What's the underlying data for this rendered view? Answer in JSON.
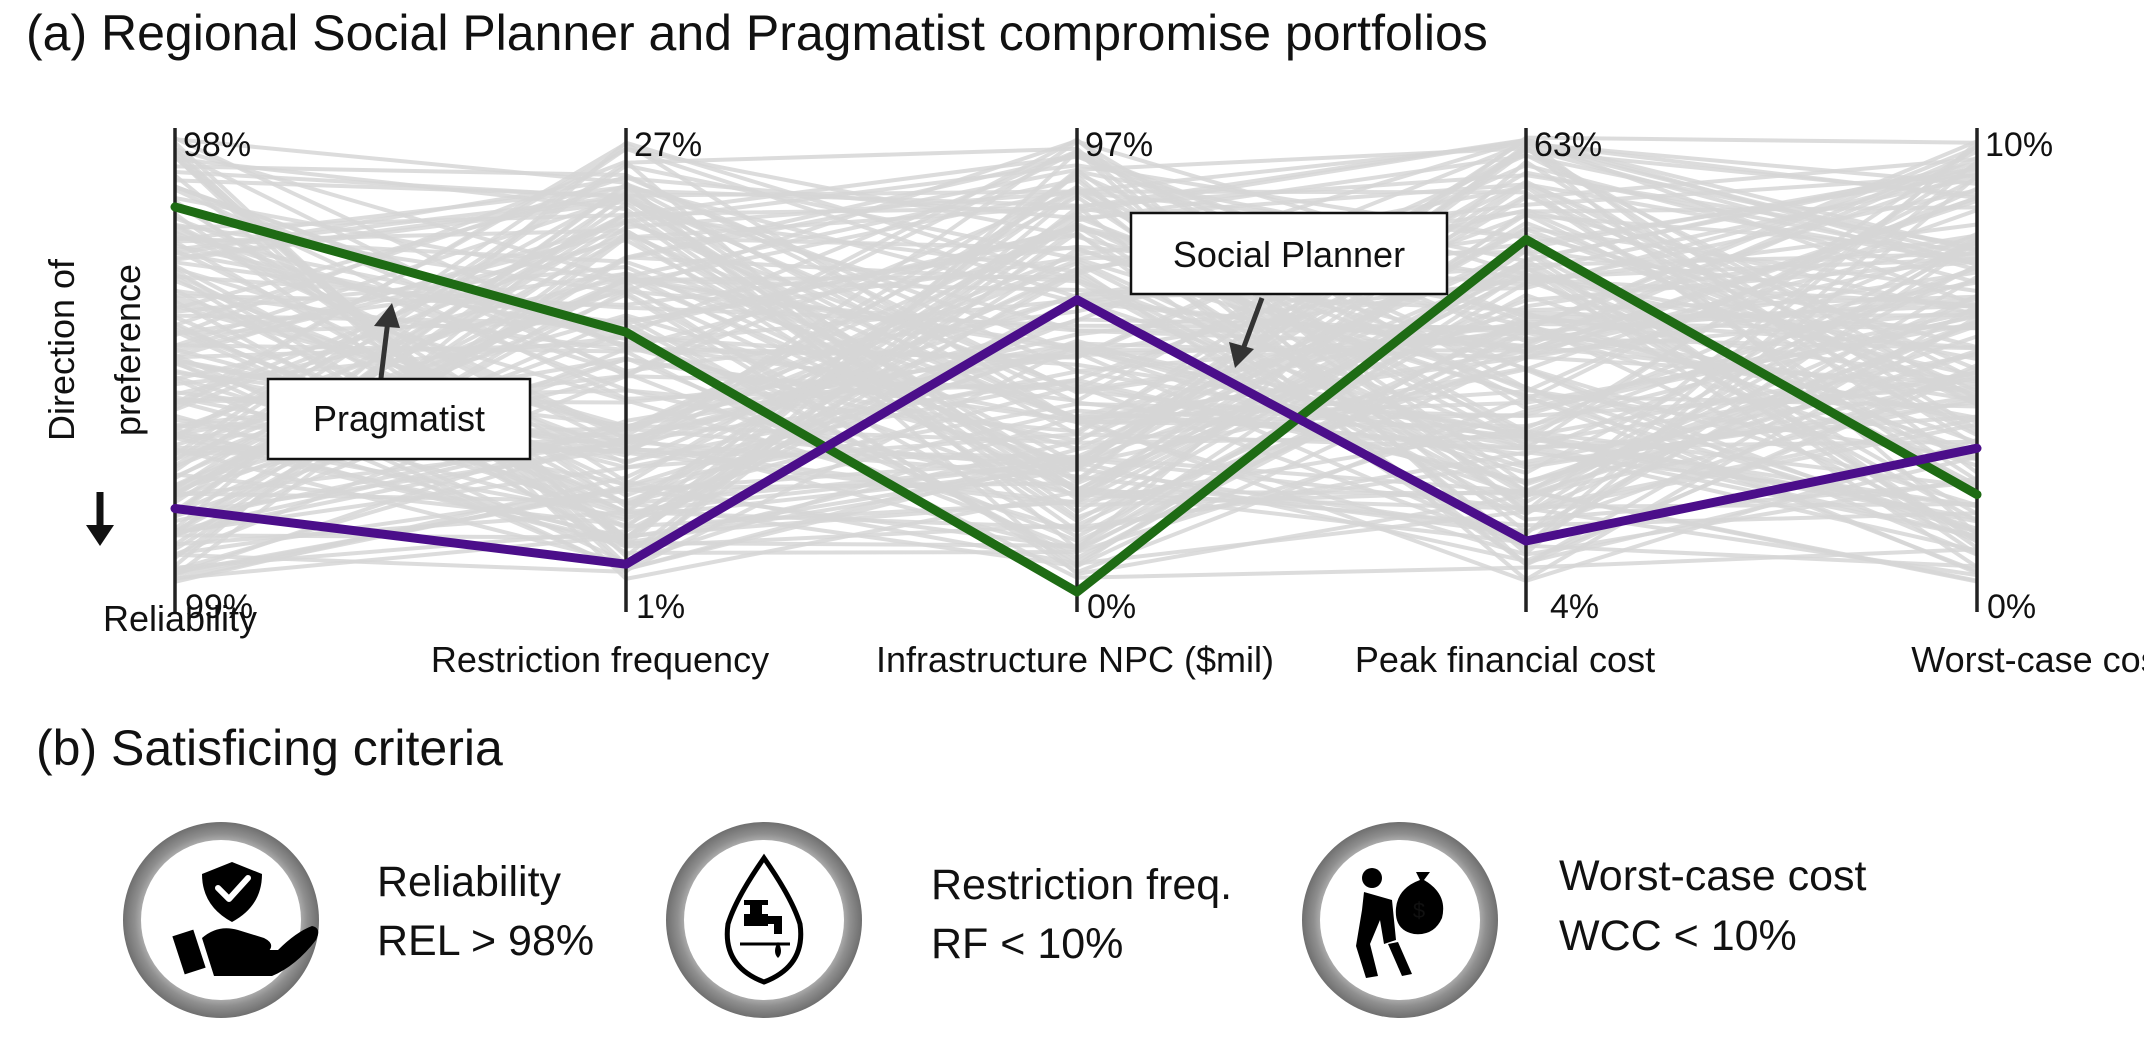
{
  "panel_a": {
    "title": "(a) Regional Social Planner and Pragmatist compromise portfolios"
  },
  "direction_of_preference": {
    "line1": "Direction of",
    "line2": "preference"
  },
  "callouts": {
    "pragmatist": "Pragmatist",
    "social_planner": "Social Planner"
  },
  "colors": {
    "background_lines": "#d6d6d6",
    "pragmatist": "#1e6b14",
    "social_planner": "#4b0e8a",
    "axis": "#222222",
    "icon_ring": "#9a9a9a"
  },
  "chart_data": {
    "type": "parallel-coordinates",
    "axes": [
      {
        "name": "Reliability",
        "top_label": "98%",
        "bottom_label": "99%"
      },
      {
        "name": "Restriction frequency",
        "top_label": "27%",
        "bottom_label": "1%"
      },
      {
        "name": "Infrastructure NPC ($mil)",
        "top_label": "97%",
        "bottom_label": "0%"
      },
      {
        "name": "Peak financial cost",
        "top_label": "63%",
        "bottom_label": "4%"
      },
      {
        "name": "Worst-case cost",
        "top_label": "10%",
        "bottom_label": "0%"
      }
    ],
    "series": [
      {
        "name": "Pragmatist",
        "color": "#1e6b14",
        "values_fraction_of_range_from_top": [
          0.17,
          0.44,
          1.0,
          0.24,
          0.79
        ]
      },
      {
        "name": "Social Planner",
        "color": "#4b0e8a",
        "values_fraction_of_range_from_top": [
          0.82,
          0.94,
          0.37,
          0.89,
          0.69
        ]
      }
    ],
    "background_solutions": "many grey solution lines"
  },
  "panel_b": {
    "title": "(b) Satisficing criteria"
  },
  "criteria": [
    {
      "icon": "hand-shield-check-icon",
      "label": "Reliability",
      "rule": "REL > 98%"
    },
    {
      "icon": "water-drop-faucet-icon",
      "label": "Restriction freq.",
      "rule": "RF < 10%"
    },
    {
      "icon": "person-carrying-money-bag-icon",
      "label": "Worst-case cost",
      "rule": "WCC < 10%"
    }
  ]
}
